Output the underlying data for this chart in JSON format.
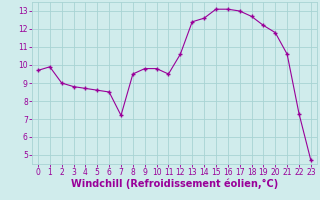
{
  "x": [
    0,
    1,
    2,
    3,
    4,
    5,
    6,
    7,
    8,
    9,
    10,
    11,
    12,
    13,
    14,
    15,
    16,
    17,
    18,
    19,
    20,
    21,
    22,
    23
  ],
  "y": [
    9.7,
    9.9,
    9.0,
    8.8,
    8.7,
    8.6,
    8.5,
    7.2,
    9.5,
    9.8,
    9.8,
    9.5,
    10.6,
    12.4,
    12.6,
    13.1,
    13.1,
    13.0,
    12.7,
    12.2,
    11.8,
    10.6,
    7.3,
    4.7
  ],
  "line_color": "#990099",
  "marker": "+",
  "marker_size": 3,
  "marker_edge_width": 1.0,
  "line_width": 0.8,
  "bg_color": "#d0ecec",
  "grid_color": "#a8d4d4",
  "xlabel": "Windchill (Refroidissement éolien,°C)",
  "xlabel_color": "#990099",
  "ylim": [
    4.5,
    13.5
  ],
  "xlim": [
    -0.5,
    23.5
  ],
  "yticks": [
    5,
    6,
    7,
    8,
    9,
    10,
    11,
    12,
    13
  ],
  "xticks": [
    0,
    1,
    2,
    3,
    4,
    5,
    6,
    7,
    8,
    9,
    10,
    11,
    12,
    13,
    14,
    15,
    16,
    17,
    18,
    19,
    20,
    21,
    22,
    23
  ],
  "tick_color": "#990099",
  "tick_fontsize": 5.5,
  "xlabel_fontsize": 7
}
